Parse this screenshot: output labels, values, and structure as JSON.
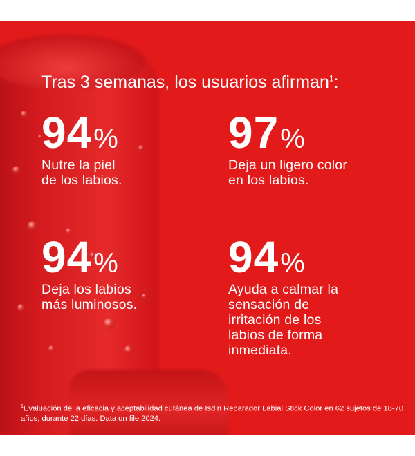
{
  "headline": {
    "text": "Tras 3 semanas, los usuarios afirman",
    "marker": "1",
    "suffix": ":"
  },
  "stats": [
    {
      "value": "94",
      "unit": "%",
      "description": "Nutre la piel\nde los labios."
    },
    {
      "value": "97",
      "unit": "%",
      "description": "Deja un ligero color\nen los labios."
    },
    {
      "value": "94",
      "unit": "%",
      "description": "Deja los labios\nmás luminosos."
    },
    {
      "value": "94",
      "unit": "%",
      "description": "Ayuda a calmar la\nsensación de\nirritación de los\nlabios de forma\ninmediata."
    }
  ],
  "footnote": {
    "marker": "1",
    "text": "Evaluación de la eficacia y aceptabilidad cutánea de Isdin Reparador Labial Stick Color en 62 sujetos de 18-70 años, durante 22 días. Data on file 2024."
  },
  "colors": {
    "background": "#e21a1a",
    "text": "#ffffff",
    "page": "#ffffff"
  }
}
